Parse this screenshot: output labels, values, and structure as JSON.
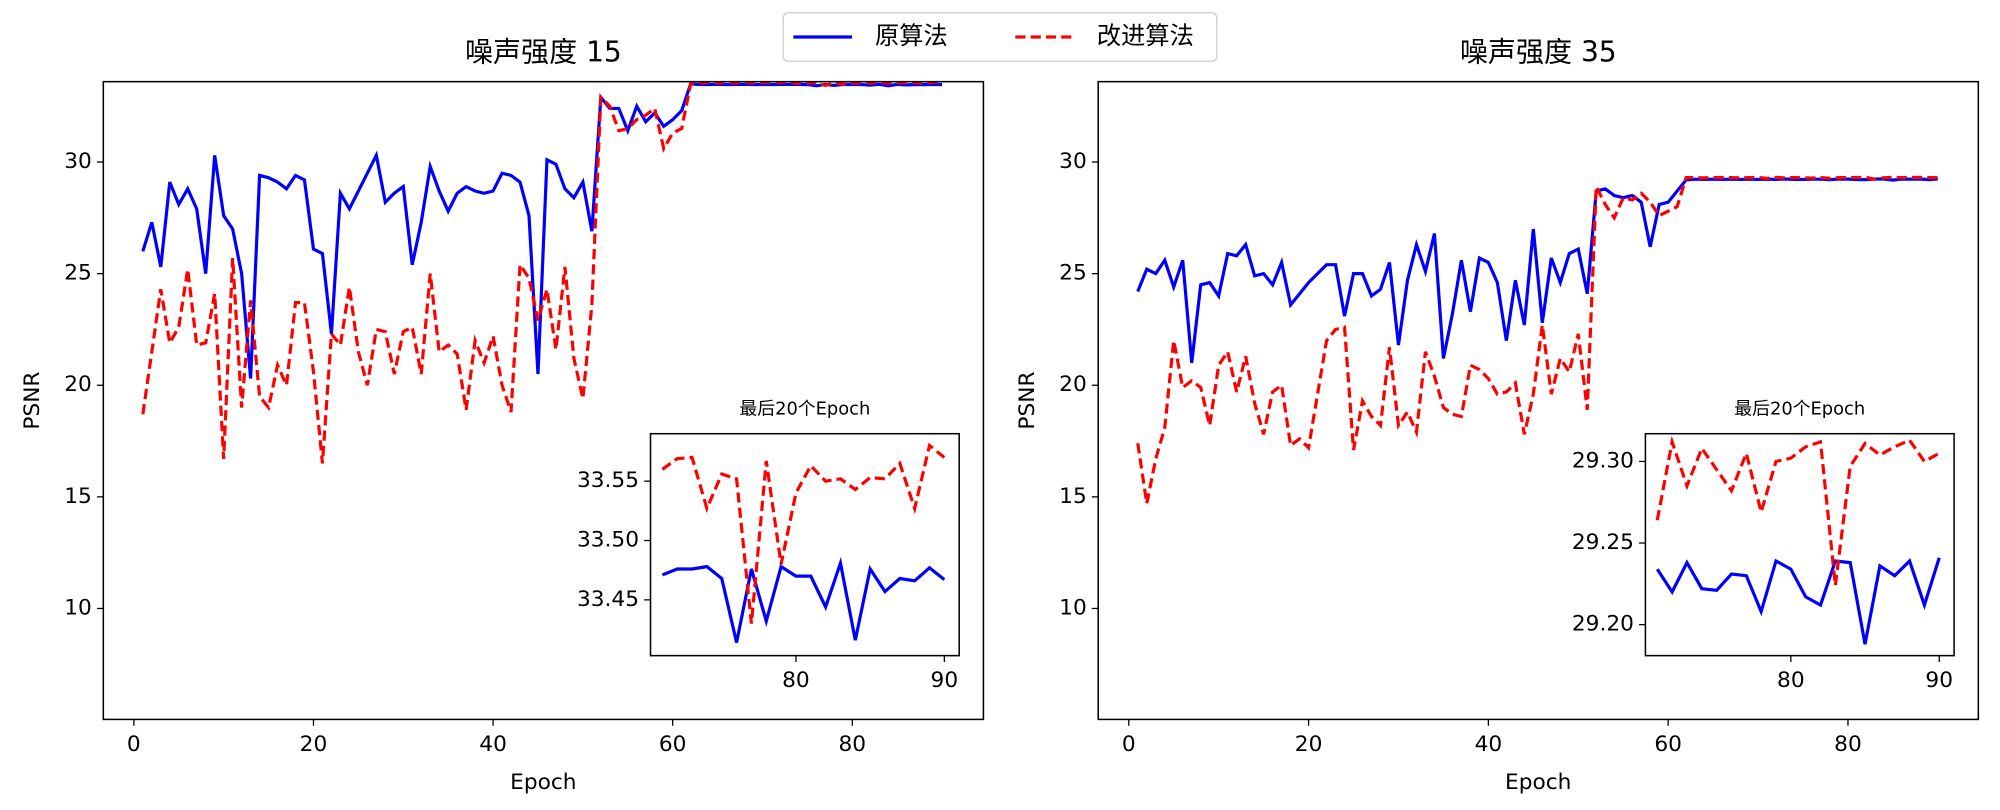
{
  "chart_data": [
    {
      "type": "line",
      "title": "噪声强度 15",
      "xlabel": "Epoch",
      "ylabel": "PSNR",
      "legend": "upper center",
      "x": [
        1,
        2,
        3,
        4,
        5,
        6,
        7,
        8,
        9,
        10,
        11,
        12,
        13,
        14,
        15,
        16,
        17,
        18,
        19,
        20,
        21,
        22,
        23,
        24,
        25,
        26,
        27,
        28,
        29,
        30,
        31,
        32,
        33,
        34,
        35,
        36,
        37,
        38,
        39,
        40,
        41,
        42,
        43,
        44,
        45,
        46,
        47,
        48,
        49,
        50,
        51,
        52,
        53,
        54,
        55,
        56,
        57,
        58,
        59,
        60,
        61,
        62,
        63,
        64,
        65,
        66,
        67,
        68,
        69,
        70,
        71,
        72,
        73,
        74,
        75,
        76,
        77,
        78,
        79,
        80,
        81,
        82,
        83,
        84,
        85,
        86,
        87,
        88,
        89,
        90
      ],
      "xlim": [
        -3.4,
        94.6
      ],
      "xticks": [
        0,
        20,
        40,
        60,
        80
      ],
      "ylim": [
        5.03,
        33.6
      ],
      "yticks": [
        10,
        15,
        20,
        25,
        30
      ],
      "series": [
        {
          "name": "原算法",
          "color": "#0000ff",
          "style": "solid",
          "values": [
            26,
            27.3,
            25.3,
            29.1,
            28.1,
            28.8,
            27.9,
            25,
            30.3,
            27.6,
            27,
            25,
            20.3,
            29.4,
            29.3,
            29.1,
            28.8,
            29.4,
            29.2,
            26.1,
            25.9,
            22.3,
            28.6,
            27.9,
            28.7,
            29.5,
            30.3,
            28.2,
            28.6,
            28.9,
            25.4,
            27.3,
            29.8,
            28.7,
            27.8,
            28.6,
            28.9,
            28.7,
            28.6,
            28.7,
            29.5,
            29.4,
            29.1,
            27.6,
            20.5,
            30.1,
            29.9,
            28.8,
            28.4,
            29.1,
            26.9,
            32.9,
            32.4,
            32.4,
            31.4,
            32.5,
            31.8,
            32.2,
            31.6,
            31.9,
            32.3,
            33.5,
            33.47,
            33.47,
            33.48,
            33.47,
            33.47,
            33.48,
            33.47,
            33.47,
            33.471,
            33.476,
            33.476,
            33.478,
            33.468,
            33.414,
            33.476,
            33.432,
            33.478,
            33.47,
            33.47,
            33.444,
            33.481,
            33.416,
            33.476,
            33.457,
            33.468,
            33.466,
            33.477,
            33.467
          ]
        },
        {
          "name": "改进算法",
          "color": "#ff0000",
          "style": "dashed",
          "values": [
            18.7,
            21.5,
            24.3,
            21.9,
            22.6,
            25.2,
            21.8,
            21.9,
            24.1,
            16.7,
            25.7,
            19,
            23.8,
            19.5,
            19,
            20.9,
            20,
            23.7,
            23.7,
            20.6,
            16.5,
            22.3,
            21.8,
            24.4,
            21.5,
            20,
            22.5,
            22.4,
            20.5,
            22.4,
            22.6,
            20.5,
            25,
            21.5,
            21.8,
            21.4,
            18.9,
            22,
            21,
            22.2,
            20,
            18.8,
            25.4,
            24.8,
            22.9,
            24.3,
            21.6,
            25.3,
            21.2,
            19.4,
            23.6,
            32.9,
            32.5,
            31.4,
            31.5,
            31.9,
            32.1,
            32.4,
            30.6,
            31.3,
            31.5,
            33.5,
            33.55,
            33.56,
            33.55,
            33.56,
            33.55,
            33.56,
            33.55,
            33.56,
            33.56,
            33.569,
            33.57,
            33.527,
            33.556,
            33.552,
            33.43,
            33.567,
            33.48,
            33.54,
            33.563,
            33.55,
            33.552,
            33.543,
            33.553,
            33.552,
            33.565,
            33.527,
            33.58,
            33.57
          ]
        }
      ]
    },
    {
      "type": "line",
      "title": "最后20个Epoch",
      "x": [
        71,
        72,
        73,
        74,
        75,
        76,
        77,
        78,
        79,
        80,
        81,
        82,
        83,
        84,
        85,
        86,
        87,
        88,
        89,
        90
      ],
      "xlim": [
        70.2,
        91
      ],
      "xticks": [
        80,
        90
      ],
      "ylim": [
        33.403,
        33.59
      ],
      "yticks": [
        {
          "value": 33.45,
          "label": "33.45"
        },
        {
          "value": 33.5,
          "label": "33.50"
        },
        33.55
      ],
      "series": [
        {
          "color": "#0000ff",
          "style": "solid",
          "values": [
            33.471,
            33.476,
            33.476,
            33.478,
            33.468,
            33.414,
            33.476,
            33.432,
            33.478,
            33.47,
            33.47,
            33.444,
            33.481,
            33.416,
            33.476,
            33.457,
            33.468,
            33.466,
            33.477,
            33.467
          ]
        },
        {
          "color": "#ff0000",
          "style": "dashed",
          "values": [
            33.56,
            33.569,
            33.57,
            33.527,
            33.556,
            33.552,
            33.43,
            33.567,
            33.48,
            33.54,
            33.563,
            33.55,
            33.552,
            33.543,
            33.553,
            33.552,
            33.565,
            33.527,
            33.58,
            33.57
          ]
        }
      ]
    },
    {
      "type": "line",
      "title": "噪声强度 35",
      "xlabel": "Epoch",
      "ylabel": "PSNR",
      "x": [
        1,
        2,
        3,
        4,
        5,
        6,
        7,
        8,
        9,
        10,
        11,
        12,
        13,
        14,
        15,
        16,
        17,
        18,
        19,
        20,
        21,
        22,
        23,
        24,
        25,
        26,
        27,
        28,
        29,
        30,
        31,
        32,
        33,
        34,
        35,
        36,
        37,
        38,
        39,
        40,
        41,
        42,
        43,
        44,
        45,
        46,
        47,
        48,
        49,
        50,
        51,
        52,
        53,
        54,
        55,
        56,
        57,
        58,
        59,
        60,
        61,
        62,
        63,
        64,
        65,
        66,
        67,
        68,
        69,
        70,
        71,
        72,
        73,
        74,
        75,
        76,
        77,
        78,
        79,
        80,
        81,
        82,
        83,
        84,
        85,
        86,
        87,
        88,
        89,
        90
      ],
      "xlim": [
        -3.4,
        94.5
      ],
      "xticks": [
        0,
        20,
        40,
        60,
        80
      ],
      "ylim": [
        5.03,
        33.6
      ],
      "yticks": [
        10,
        15,
        20,
        25,
        30
      ],
      "series": [
        {
          "color": "#0000ff",
          "style": "solid",
          "values": [
            24.2,
            25.2,
            25,
            25.6,
            24.4,
            25.6,
            21,
            24.5,
            24.6,
            24,
            25.9,
            25.8,
            26.3,
            24.9,
            25,
            24.5,
            25.5,
            23.6,
            24.1,
            24.6,
            25,
            25.4,
            25.4,
            23.1,
            25,
            25,
            24,
            24.3,
            25.5,
            21.8,
            24.7,
            26.3,
            25.1,
            26.8,
            21.2,
            23.2,
            25.6,
            23.3,
            25.7,
            25.5,
            24.6,
            22,
            24.7,
            22.7,
            27,
            22.8,
            25.7,
            24.6,
            25.9,
            26.1,
            24.1,
            28.7,
            28.8,
            28.5,
            28.4,
            28.5,
            28.2,
            26.2,
            28.1,
            28.2,
            28.7,
            29.2,
            29.23,
            29.22,
            29.23,
            29.22,
            29.23,
            29.22,
            29.23,
            29.22,
            29.234,
            29.22,
            29.238,
            29.222,
            29.221,
            29.231,
            29.23,
            29.208,
            29.239,
            29.234,
            29.217,
            29.212,
            29.239,
            29.238,
            29.188,
            29.236,
            29.23,
            29.239,
            29.212,
            29.241
          ]
        },
        {
          "color": "#ff0000",
          "style": "dashed",
          "values": [
            17.4,
            14.7,
            16.7,
            18.1,
            22,
            19.9,
            20.2,
            19.9,
            18.2,
            20.9,
            21.5,
            19.7,
            21.3,
            19.2,
            17.8,
            19.7,
            20,
            17.3,
            17.6,
            17.2,
            19.6,
            22,
            22.5,
            22.6,
            17.1,
            19.3,
            18.6,
            18.2,
            21.7,
            18.2,
            18.8,
            17.9,
            21.5,
            20.4,
            19,
            18.7,
            18.6,
            20.9,
            20.7,
            20.3,
            19.6,
            19.7,
            20.1,
            17.8,
            19.6,
            22.7,
            19.6,
            21.2,
            20.6,
            22.3,
            18.9,
            28.9,
            28.1,
            27.5,
            28.4,
            28.3,
            28.6,
            28.2,
            27.6,
            27.8,
            28,
            29.3,
            29.3,
            29.29,
            29.3,
            29.31,
            29.3,
            29.29,
            29.3,
            29.31,
            29.264,
            29.312,
            29.285,
            29.308,
            29.295,
            29.282,
            29.305,
            29.269,
            29.3,
            29.302,
            29.309,
            29.312,
            29.224,
            29.297,
            29.311,
            29.304,
            29.309,
            29.313,
            29.3,
            29.305
          ]
        }
      ]
    },
    {
      "type": "line",
      "title": "最后20个Epoch",
      "x": [
        71,
        72,
        73,
        74,
        75,
        76,
        77,
        78,
        79,
        80,
        81,
        82,
        83,
        84,
        85,
        86,
        87,
        88,
        89,
        90
      ],
      "xlim": [
        70.2,
        91
      ],
      "xticks": [
        80,
        90
      ],
      "ylim": [
        29.181,
        29.317
      ],
      "yticks": [
        {
          "value": 29.2,
          "label": "29.20"
        },
        29.25,
        {
          "value": 29.3,
          "label": "29.30"
        }
      ],
      "series": [
        {
          "color": "#0000ff",
          "style": "solid",
          "values": [
            29.234,
            29.22,
            29.238,
            29.222,
            29.221,
            29.231,
            29.23,
            29.208,
            29.239,
            29.234,
            29.217,
            29.212,
            29.239,
            29.238,
            29.188,
            29.236,
            29.23,
            29.239,
            29.212,
            29.241
          ]
        },
        {
          "color": "#ff0000",
          "style": "dashed",
          "values": [
            29.264,
            29.312,
            29.285,
            29.308,
            29.295,
            29.282,
            29.305,
            29.269,
            29.3,
            29.302,
            29.309,
            29.312,
            29.224,
            29.297,
            29.311,
            29.304,
            29.309,
            29.313,
            29.3,
            29.305
          ]
        }
      ]
    }
  ]
}
